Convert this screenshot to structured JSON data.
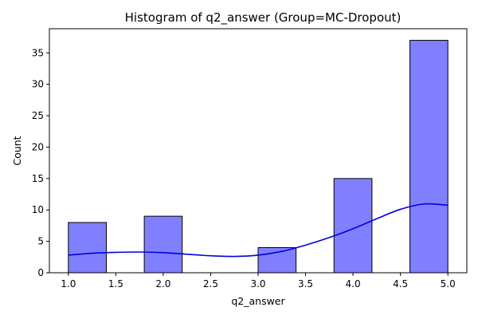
{
  "chart_data": {
    "type": "bar",
    "title": "Histogram of q2_answer (Group=MC-Dropout)",
    "xlabel": "q2_answer",
    "ylabel": "Count",
    "xlim": [
      0.8,
      5.2
    ],
    "ylim": [
      0,
      38.85
    ],
    "x_ticks": [
      1.0,
      1.5,
      2.0,
      2.5,
      3.0,
      3.5,
      4.0,
      4.5,
      5.0
    ],
    "x_tick_labels": [
      "1.0",
      "1.5",
      "2.0",
      "2.5",
      "3.0",
      "3.5",
      "4.0",
      "4.5",
      "5.0"
    ],
    "y_ticks": [
      0,
      5,
      10,
      15,
      20,
      25,
      30,
      35
    ],
    "y_tick_labels": [
      "0",
      "5",
      "10",
      "15",
      "20",
      "25",
      "30",
      "35"
    ],
    "bins": [
      {
        "x0": 1.0,
        "x1": 1.4,
        "count": 8
      },
      {
        "x0": 1.4,
        "x1": 1.8,
        "count": 0
      },
      {
        "x0": 1.8,
        "x1": 2.2,
        "count": 9
      },
      {
        "x0": 2.2,
        "x1": 2.6,
        "count": 0
      },
      {
        "x0": 2.6,
        "x1": 3.0,
        "count": 0
      },
      {
        "x0": 3.0,
        "x1": 3.4,
        "count": 4
      },
      {
        "x0": 3.4,
        "x1": 3.8,
        "count": 0
      },
      {
        "x0": 3.8,
        "x1": 4.2,
        "count": 15
      },
      {
        "x0": 4.2,
        "x1": 4.6,
        "count": 0
      },
      {
        "x0": 4.6,
        "x1": 5.0,
        "count": 37
      }
    ],
    "kde": {
      "x": [
        1.0,
        1.25,
        1.5,
        1.75,
        2.0,
        2.25,
        2.5,
        2.75,
        3.0,
        3.25,
        3.5,
        3.75,
        4.0,
        4.25,
        4.5,
        4.75,
        5.0
      ],
      "y": [
        2.8,
        3.1,
        3.25,
        3.3,
        3.2,
        2.95,
        2.7,
        2.6,
        2.8,
        3.4,
        4.4,
        5.6,
        7.0,
        8.6,
        10.1,
        10.95,
        10.75
      ]
    },
    "colors": {
      "bar_fill": "#8080ff",
      "bar_edge": "#000000",
      "kde_line": "#0000e0"
    }
  }
}
